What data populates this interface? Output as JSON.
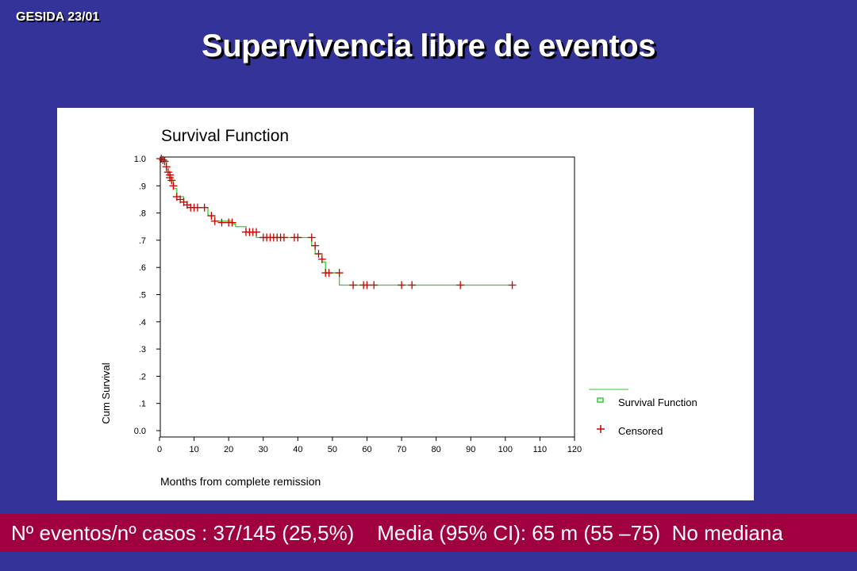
{
  "slide": {
    "code": "GESIDA 23/01",
    "title": "Supervivencia libre de eventos",
    "footer": "Nº eventos/nº casos : 37/145 (25,5%)    Media (95% CI): 65 m (55 –75)  No mediana"
  },
  "colors": {
    "background": "#333399",
    "footer_bar": "#a00040",
    "survival_line": "#33cc33",
    "censored_marker": "#cc0000"
  },
  "chart_data": {
    "type": "line",
    "title": "Survival Function",
    "xlabel": "Months from complete remission",
    "ylabel": "Cum Survival",
    "xlim": [
      0,
      120
    ],
    "ylim": [
      0,
      1
    ],
    "x_ticks": [
      "0",
      "10",
      "20",
      "30",
      "40",
      "50",
      "60",
      "70",
      "80",
      "90",
      "100",
      "110",
      "120"
    ],
    "y_ticks": [
      "0.0",
      ".1",
      ".2",
      ".3",
      ".4",
      ".5",
      ".6",
      ".7",
      ".8",
      ".9",
      "1.0"
    ],
    "legend": {
      "position": "right",
      "entries": [
        "Survival Function",
        "Censored"
      ]
    },
    "series": [
      {
        "name": "Survival Function",
        "steps": [
          [
            0,
            1.0
          ],
          [
            1,
            0.99
          ],
          [
            2,
            0.95
          ],
          [
            3,
            0.92
          ],
          [
            4,
            0.89
          ],
          [
            5,
            0.86
          ],
          [
            7,
            0.84
          ],
          [
            8,
            0.82
          ],
          [
            14,
            0.79
          ],
          [
            16,
            0.77
          ],
          [
            21,
            0.76
          ],
          [
            22,
            0.75
          ],
          [
            25,
            0.73
          ],
          [
            28,
            0.71
          ],
          [
            44,
            0.68
          ],
          [
            45,
            0.65
          ],
          [
            47,
            0.62
          ],
          [
            48,
            0.58
          ],
          [
            52,
            0.535
          ],
          [
            101,
            0.535
          ]
        ]
      },
      {
        "name": "Censored",
        "points": [
          [
            0.5,
            1.0
          ],
          [
            1,
            0.995
          ],
          [
            1.5,
            0.99
          ],
          [
            2,
            0.97
          ],
          [
            2.5,
            0.95
          ],
          [
            3,
            0.94
          ],
          [
            3,
            0.93
          ],
          [
            3.5,
            0.92
          ],
          [
            4,
            0.9
          ],
          [
            5,
            0.86
          ],
          [
            6,
            0.85
          ],
          [
            7,
            0.84
          ],
          [
            8,
            0.83
          ],
          [
            9,
            0.82
          ],
          [
            10,
            0.82
          ],
          [
            11,
            0.82
          ],
          [
            13,
            0.82
          ],
          [
            15,
            0.79
          ],
          [
            16,
            0.77
          ],
          [
            18,
            0.765
          ],
          [
            20,
            0.765
          ],
          [
            21,
            0.765
          ],
          [
            25,
            0.73
          ],
          [
            26,
            0.73
          ],
          [
            27,
            0.73
          ],
          [
            28,
            0.73
          ],
          [
            30,
            0.71
          ],
          [
            31,
            0.71
          ],
          [
            32,
            0.71
          ],
          [
            33,
            0.71
          ],
          [
            34,
            0.71
          ],
          [
            35,
            0.71
          ],
          [
            36,
            0.71
          ],
          [
            39,
            0.71
          ],
          [
            40,
            0.71
          ],
          [
            44,
            0.71
          ],
          [
            45,
            0.68
          ],
          [
            46,
            0.65
          ],
          [
            47,
            0.63
          ],
          [
            48,
            0.58
          ],
          [
            49,
            0.58
          ],
          [
            52,
            0.58
          ],
          [
            56,
            0.535
          ],
          [
            59,
            0.535
          ],
          [
            60,
            0.535
          ],
          [
            62,
            0.535
          ],
          [
            70,
            0.535
          ],
          [
            73,
            0.535
          ],
          [
            87,
            0.535
          ],
          [
            102,
            0.535
          ]
        ]
      }
    ]
  }
}
